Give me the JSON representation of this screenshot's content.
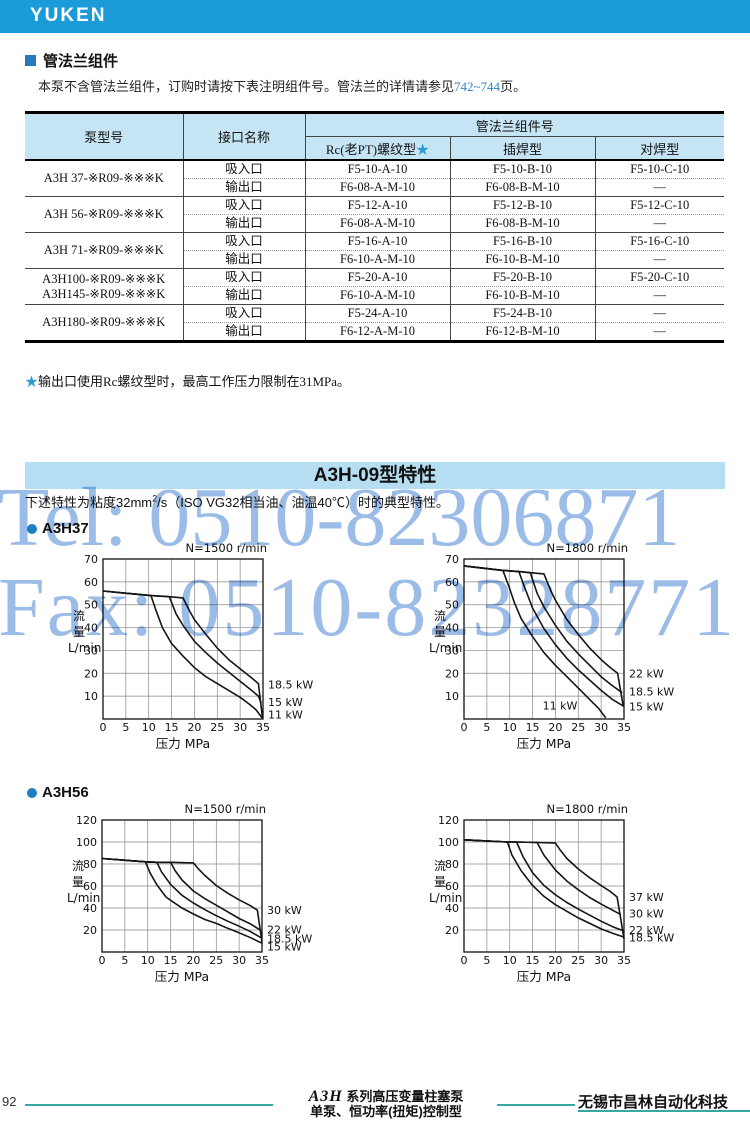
{
  "topbar": {
    "logo": "YUKEN"
  },
  "section_flange": {
    "heading": "管法兰组件",
    "intro_pre": "本泵不含管法兰组件，订购时请按下表注明组件号。管法兰的详情请参见",
    "intro_link": "742~744",
    "intro_post": "页。",
    "table": {
      "col_model": "泵型号",
      "col_port": "接口名称",
      "col_group": "管法兰组件号",
      "col_rc": "Rc(老PT)螺纹型",
      "col_rc_star": "★",
      "col_socket": "插焊型",
      "col_butt": "对焊型",
      "groups": [
        {
          "models": [
            "A3H 37-※R09-※※※K"
          ],
          "rows": [
            [
              "吸入口",
              "F5-10-A-10",
              "F5-10-B-10",
              "F5-10-C-10"
            ],
            [
              "输出口",
              "F6-08-A-M-10",
              "F6-08-B-M-10",
              "—"
            ]
          ]
        },
        {
          "models": [
            "A3H 56-※R09-※※※K"
          ],
          "rows": [
            [
              "吸入口",
              "F5-12-A-10",
              "F5-12-B-10",
              "F5-12-C-10"
            ],
            [
              "输出口",
              "F6-08-A-M-10",
              "F6-08-B-M-10",
              "—"
            ]
          ]
        },
        {
          "models": [
            "A3H 71-※R09-※※※K"
          ],
          "rows": [
            [
              "吸入口",
              "F5-16-A-10",
              "F5-16-B-10",
              "F5-16-C-10"
            ],
            [
              "输出口",
              "F6-10-A-M-10",
              "F6-10-B-M-10",
              "—"
            ]
          ]
        },
        {
          "models": [
            "A3H100-※R09-※※※K",
            "A3H145-※R09-※※※K"
          ],
          "rows": [
            [
              "吸入口",
              "F5-20-A-10",
              "F5-20-B-10",
              "F5-20-C-10"
            ],
            [
              "输出口",
              "F6-10-A-M-10",
              "F6-10-B-M-10",
              "—"
            ]
          ]
        },
        {
          "models": [
            "A3H180-※R09-※※※K"
          ],
          "rows": [
            [
              "吸入口",
              "F5-24-A-10",
              "F5-24-B-10",
              "—"
            ],
            [
              "输出口",
              "F6-12-A-M-10",
              "F6-12-B-M-10",
              "—"
            ]
          ]
        }
      ]
    },
    "note_star": "★",
    "note": "输出口使用Rc螺纹型时，最高工作压力限制在31MPa。"
  },
  "section_chars": {
    "banner": "A3H-09型特性",
    "desc_pre": "下述特性为粘度32mm",
    "desc_sup": "2",
    "desc_post": "/s（ISO VG32相当油、油温40℃）时的典型特性。",
    "models": [
      {
        "label": "A3H37"
      },
      {
        "label": "A3H56"
      }
    ]
  },
  "watermark": {
    "line1": "Tel: 0510-82306871",
    "line2": "Fax: 0510-82328771"
  },
  "footer": {
    "page_number": "92",
    "series_logo": "A3H",
    "series_title": "系列高压变量柱塞泵",
    "series_subtitle": "单泵、恒功率(扭矩)控制型",
    "company": "无锡市昌林自动化科技"
  },
  "colors": {
    "brand_blue": "#1B9BD7",
    "table_header_bg": "#C5E4F4",
    "banner_bg": "#B5DEF2",
    "link_blue": "#2E86C8",
    "star_blue": "#2E9BD6",
    "bullet_blue": "#1E7FC0",
    "footer_teal": "#35A8A5",
    "watermark_blue": "#9CBCE8"
  },
  "chart_data": [
    {
      "type": "line",
      "model": "A3H37",
      "title": "N=1500 r/min",
      "xlabel": "压力  MPa",
      "ylabel": "流量",
      "yunit": "L/min",
      "xlim": [
        0,
        35
      ],
      "xtick": 5,
      "ylim": [
        0,
        70
      ],
      "ytick": 10,
      "grid": true,
      "legend_position": "right",
      "series": [
        {
          "name": "11 kW",
          "label_v": 2,
          "points": [
            [
              0,
              56
            ],
            [
              10.5,
              54
            ],
            [
              11.5,
              48
            ],
            [
              13,
              40
            ],
            [
              15,
              33
            ],
            [
              17.5,
              27.5
            ],
            [
              20,
              22.5
            ],
            [
              22.5,
              18.5
            ],
            [
              25,
              15.5
            ],
            [
              27.5,
              12.5
            ],
            [
              30,
              9.5
            ],
            [
              32,
              6.5
            ],
            [
              33.5,
              4
            ],
            [
              34.8,
              0.5
            ]
          ]
        },
        {
          "name": "15 kW",
          "label_v": 7.5,
          "points": [
            [
              0,
              56
            ],
            [
              10.5,
              54
            ],
            [
              14.5,
              53.5
            ],
            [
              16,
              46
            ],
            [
              17.5,
              41
            ],
            [
              20,
              34
            ],
            [
              22.5,
              29
            ],
            [
              25,
              24.5
            ],
            [
              27.5,
              20.5
            ],
            [
              30,
              16.5
            ],
            [
              32.5,
              12.5
            ],
            [
              34,
              10
            ],
            [
              34.6,
              7
            ]
          ]
        },
        {
          "name": "18.5 kW",
          "label_v": 15,
          "points": [
            [
              0,
              56
            ],
            [
              10.5,
              54
            ],
            [
              14.5,
              53.5
            ],
            [
              17.5,
              53
            ],
            [
              19,
              47
            ],
            [
              20,
              43.5
            ],
            [
              22.5,
              37
            ],
            [
              25,
              31
            ],
            [
              27.5,
              26
            ],
            [
              30,
              22
            ],
            [
              32.5,
              18
            ],
            [
              34,
              15.5
            ],
            [
              34.9,
              0.5
            ]
          ]
        }
      ]
    },
    {
      "type": "line",
      "model": "A3H37",
      "title": "N=1800 r/min",
      "xlabel": "压力  MPa",
      "ylabel": "流量",
      "yunit": "L/min",
      "xlim": [
        0,
        35
      ],
      "xtick": 5,
      "ylim": [
        0,
        70
      ],
      "ytick": 10,
      "grid": true,
      "legend_position": "right",
      "series": [
        {
          "name": "11 kW",
          "label_inside": [
            21,
            6
          ],
          "points": [
            [
              0,
              67
            ],
            [
              8.5,
              65
            ],
            [
              10,
              57
            ],
            [
              11,
              51
            ],
            [
              12.5,
              44
            ],
            [
              15,
              36
            ],
            [
              17.5,
              29
            ],
            [
              20,
              23.5
            ],
            [
              22.5,
              18.5
            ],
            [
              25,
              13.5
            ],
            [
              27.5,
              8.5
            ],
            [
              29.5,
              4.5
            ],
            [
              31,
              0.5
            ]
          ]
        },
        {
          "name": "15 kW",
          "label_v": 5.5,
          "points": [
            [
              0,
              67
            ],
            [
              8.5,
              65
            ],
            [
              12,
              64.5
            ],
            [
              13,
              59
            ],
            [
              15,
              48.5
            ],
            [
              17.5,
              39.5
            ],
            [
              20,
              32.5
            ],
            [
              22.5,
              26.5
            ],
            [
              25,
              21.5
            ],
            [
              27.5,
              17
            ],
            [
              30,
              12.5
            ],
            [
              32.5,
              8.5
            ],
            [
              35,
              5.5
            ]
          ]
        },
        {
          "name": "18.5 kW",
          "label_v": 12,
          "points": [
            [
              0,
              67
            ],
            [
              8.5,
              65
            ],
            [
              12,
              64.5
            ],
            [
              14.5,
              64
            ],
            [
              16,
              55
            ],
            [
              17.5,
              49
            ],
            [
              20,
              41
            ],
            [
              22.5,
              34
            ],
            [
              25,
              28.5
            ],
            [
              27.5,
              23.5
            ],
            [
              30,
              18.5
            ],
            [
              32.5,
              14.5
            ],
            [
              34.6,
              11.5
            ]
          ]
        },
        {
          "name": "22 kW",
          "label_v": 20,
          "points": [
            [
              0,
              67
            ],
            [
              8.5,
              65
            ],
            [
              12,
              64.5
            ],
            [
              14.5,
              64
            ],
            [
              17.5,
              63.5
            ],
            [
              19,
              56
            ],
            [
              20,
              52
            ],
            [
              22.5,
              43.5
            ],
            [
              25,
              37
            ],
            [
              27.5,
              31
            ],
            [
              30,
              26
            ],
            [
              32,
              22.5
            ],
            [
              33.6,
              20
            ],
            [
              34.8,
              6
            ]
          ]
        }
      ]
    },
    {
      "type": "line",
      "model": "A3H56",
      "title": "N=1500 r/min",
      "xlabel": "压力  MPa",
      "ylabel": "流量",
      "yunit": "L/min",
      "xlim": [
        0,
        35
      ],
      "xtick": 5,
      "ylim": [
        0,
        120
      ],
      "ytick": 20,
      "grid": true,
      "legend_position": "right",
      "series": [
        {
          "name": "15 kW",
          "label_v": 5,
          "points": [
            [
              0,
              85
            ],
            [
              9.5,
              82
            ],
            [
              10.5,
              72
            ],
            [
              12,
              61
            ],
            [
              14,
              50
            ],
            [
              15,
              47
            ],
            [
              17.5,
              40
            ],
            [
              20,
              34.5
            ],
            [
              22.5,
              29.5
            ],
            [
              25,
              26
            ],
            [
              27.5,
              21.5
            ],
            [
              30,
              17.5
            ],
            [
              32.5,
              13
            ],
            [
              35,
              8
            ]
          ]
        },
        {
          "name": "18.5 kW",
          "label_v": 12.5,
          "points": [
            [
              0,
              85
            ],
            [
              9.5,
              82
            ],
            [
              12,
              81.5
            ],
            [
              13,
              73
            ],
            [
              15,
              61.5
            ],
            [
              17.5,
              51.5
            ],
            [
              20,
              44.5
            ],
            [
              22.5,
              38.5
            ],
            [
              25,
              33
            ],
            [
              27.5,
              28
            ],
            [
              30,
              23.5
            ],
            [
              32.5,
              18.5
            ],
            [
              34.8,
              13
            ]
          ]
        },
        {
          "name": "22 kW",
          "label_v": 20.5,
          "points": [
            [
              0,
              85
            ],
            [
              9.5,
              82
            ],
            [
              12,
              81.5
            ],
            [
              15,
              81.5
            ],
            [
              16,
              74
            ],
            [
              17.5,
              65.5
            ],
            [
              20,
              55.5
            ],
            [
              22.5,
              48.5
            ],
            [
              25,
              42.5
            ],
            [
              27.5,
              36.5
            ],
            [
              30,
              30.5
            ],
            [
              32.5,
              25.5
            ],
            [
              34.6,
              20
            ]
          ]
        },
        {
          "name": "30 kW",
          "label_v": 38,
          "points": [
            [
              0,
              85
            ],
            [
              9.5,
              82
            ],
            [
              12,
              81.5
            ],
            [
              15,
              81.5
            ],
            [
              20,
              81
            ],
            [
              21,
              76
            ],
            [
              22.5,
              69.5
            ],
            [
              25,
              60.5
            ],
            [
              27.5,
              53.5
            ],
            [
              30,
              47.5
            ],
            [
              32.5,
              42
            ],
            [
              34,
              38
            ],
            [
              35,
              9
            ]
          ]
        }
      ]
    },
    {
      "type": "line",
      "model": "A3H56",
      "title": "N=1800 r/min",
      "xlabel": "压力  MPa",
      "ylabel": "流量",
      "yunit": "L/min",
      "xlim": [
        0,
        35
      ],
      "xtick": 5,
      "ylim": [
        0,
        120
      ],
      "ytick": 20,
      "grid": true,
      "legend_position": "right",
      "series": [
        {
          "name": "18.5 kW",
          "label_v": 13,
          "points": [
            [
              0,
              102
            ],
            [
              9.5,
              100
            ],
            [
              10.5,
              88
            ],
            [
              12.5,
              74
            ],
            [
              15,
              60.5
            ],
            [
              17.5,
              50.5
            ],
            [
              20,
              43
            ],
            [
              22.5,
              37
            ],
            [
              25,
              31
            ],
            [
              27.5,
              26
            ],
            [
              30,
              21
            ],
            [
              32.5,
              17
            ],
            [
              35,
              13.5
            ]
          ]
        },
        {
          "name": "22 kW",
          "label_v": 20,
          "points": [
            [
              0,
              102
            ],
            [
              9.5,
              100
            ],
            [
              11.5,
              100
            ],
            [
              13,
              86
            ],
            [
              15,
              72
            ],
            [
              17.5,
              60.5
            ],
            [
              20,
              52
            ],
            [
              22.5,
              45
            ],
            [
              25,
              39
            ],
            [
              27.5,
              33.5
            ],
            [
              30,
              28
            ],
            [
              32.5,
              23
            ],
            [
              34.7,
              19.5
            ]
          ]
        },
        {
          "name": "30 kW",
          "label_v": 35,
          "points": [
            [
              0,
              102
            ],
            [
              9.5,
              100
            ],
            [
              11.5,
              100
            ],
            [
              16,
              99.5
            ],
            [
              17.5,
              88
            ],
            [
              20,
              74.5
            ],
            [
              22.5,
              64.5
            ],
            [
              25,
              56.5
            ],
            [
              27.5,
              49.5
            ],
            [
              30,
              43.5
            ],
            [
              32.5,
              38
            ],
            [
              34.3,
              34
            ]
          ]
        },
        {
          "name": "37 kW",
          "label_v": 50,
          "points": [
            [
              0,
              102
            ],
            [
              9.5,
              100
            ],
            [
              11.5,
              100
            ],
            [
              16,
              99.5
            ],
            [
              20,
              99
            ],
            [
              21,
              93
            ],
            [
              22.5,
              85
            ],
            [
              25,
              75.5
            ],
            [
              27.5,
              67.5
            ],
            [
              30,
              60.5
            ],
            [
              32,
              55
            ],
            [
              33.5,
              50
            ],
            [
              35,
              12
            ]
          ]
        }
      ]
    }
  ]
}
